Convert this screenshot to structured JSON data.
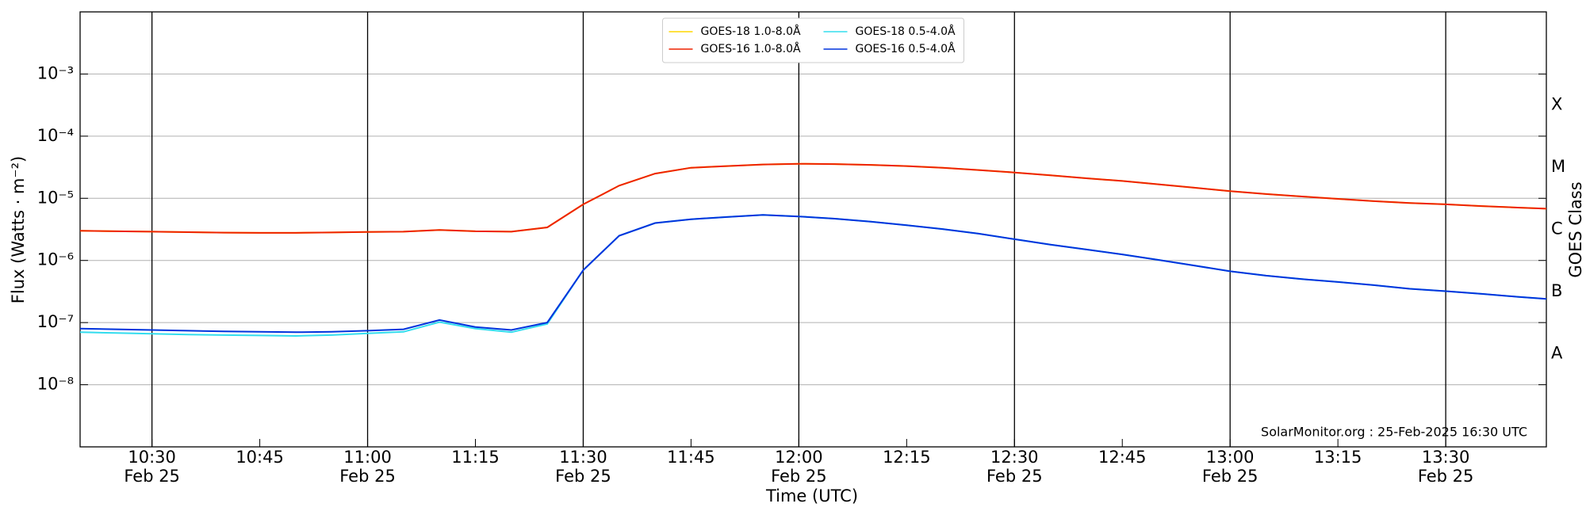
{
  "chart_data": {
    "type": "line",
    "xlabel": "Time (UTC)",
    "ylabel": "Flux (Watts · m⁻²)",
    "y2label": "GOES Class",
    "annotation": "SolarMonitor.org : 25-Feb-2025 16:30 UTC",
    "log_y": true,
    "grid": true,
    "legend": "upper center",
    "xlim": [
      "10:20",
      "13:44"
    ],
    "xticks": [
      "10:30",
      "10:45",
      "11:00",
      "11:15",
      "11:30",
      "11:45",
      "12:00",
      "12:15",
      "12:30",
      "12:45",
      "13:00",
      "13:15",
      "13:30"
    ],
    "xtick_dates": [
      "Feb 25",
      null,
      "Feb 25",
      null,
      "Feb 25",
      null,
      "Feb 25",
      null,
      "Feb 25",
      null,
      "Feb 25",
      null,
      "Feb 25"
    ],
    "ylim": [
      1e-09,
      0.01
    ],
    "yticks": [
      {
        "value": 1e-08,
        "label": "10⁻⁸"
      },
      {
        "value": 1e-07,
        "label": "10⁻⁷"
      },
      {
        "value": 1e-06,
        "label": "10⁻⁶"
      },
      {
        "value": 1e-05,
        "label": "10⁻⁵"
      },
      {
        "value": 0.0001,
        "label": "10⁻⁴"
      },
      {
        "value": 0.001,
        "label": "10⁻³"
      }
    ],
    "classes": [
      {
        "label": "A",
        "min": 1e-08,
        "max": 1e-07
      },
      {
        "label": "B",
        "min": 1e-07,
        "max": 1e-06
      },
      {
        "label": "C",
        "min": 1e-06,
        "max": 1e-05
      },
      {
        "label": "M",
        "min": 1e-05,
        "max": 0.0001
      },
      {
        "label": "X",
        "min": 0.0001,
        "max": 0.001
      }
    ],
    "x": [
      "10:20",
      "10:25",
      "10:30",
      "10:35",
      "10:40",
      "10:45",
      "10:50",
      "10:55",
      "11:00",
      "11:05",
      "11:10",
      "11:15",
      "11:20",
      "11:25",
      "11:30",
      "11:35",
      "11:40",
      "11:45",
      "11:50",
      "11:55",
      "12:00",
      "12:05",
      "12:10",
      "12:15",
      "12:20",
      "12:25",
      "12:30",
      "12:35",
      "12:40",
      "12:45",
      "12:50",
      "12:55",
      "13:00",
      "13:05",
      "13:10",
      "13:15",
      "13:20",
      "13:25",
      "13:30",
      "13:35",
      "13:40",
      "13:44"
    ],
    "series": [
      {
        "name": "GOES-18 1.0-8.0Å",
        "color": "#ffd700",
        "values": [
          3e-06,
          2.95e-06,
          2.9e-06,
          2.85e-06,
          2.8e-06,
          2.78e-06,
          2.78e-06,
          2.82e-06,
          2.88e-06,
          2.9e-06,
          3.1e-06,
          2.95e-06,
          2.9e-06,
          3.4e-06,
          8e-06,
          1.6e-05,
          2.5e-05,
          3.1e-05,
          3.3e-05,
          3.5e-05,
          3.6e-05,
          3.55e-05,
          3.45e-05,
          3.3e-05,
          3.1e-05,
          2.85e-05,
          2.6e-05,
          2.35e-05,
          2.1e-05,
          1.9e-05,
          1.68e-05,
          1.48e-05,
          1.3e-05,
          1.17e-05,
          1.07e-05,
          9.8e-06,
          9e-06,
          8.4e-06,
          8e-06,
          7.5e-06,
          7.1e-06,
          6.8e-06
        ]
      },
      {
        "name": "GOES-16 1.0-8.0Å",
        "color": "#ee2200",
        "values": [
          3e-06,
          2.95e-06,
          2.9e-06,
          2.85e-06,
          2.8e-06,
          2.78e-06,
          2.78e-06,
          2.82e-06,
          2.88e-06,
          2.9e-06,
          3.1e-06,
          2.95e-06,
          2.9e-06,
          3.4e-06,
          8e-06,
          1.6e-05,
          2.5e-05,
          3.1e-05,
          3.3e-05,
          3.5e-05,
          3.6e-05,
          3.55e-05,
          3.45e-05,
          3.3e-05,
          3.1e-05,
          2.85e-05,
          2.6e-05,
          2.35e-05,
          2.1e-05,
          1.9e-05,
          1.68e-05,
          1.48e-05,
          1.3e-05,
          1.17e-05,
          1.07e-05,
          9.8e-06,
          9e-06,
          8.4e-06,
          8e-06,
          7.5e-06,
          7.1e-06,
          6.8e-06
        ]
      },
      {
        "name": "GOES-18 0.5-4.0Å",
        "color": "#33ddee",
        "values": [
          7e-08,
          6.8e-08,
          6.6e-08,
          6.4e-08,
          6.3e-08,
          6.2e-08,
          6.1e-08,
          6.3e-08,
          6.7e-08,
          7.1e-08,
          1.02e-07,
          8e-08,
          7e-08,
          9.5e-08,
          7e-07,
          2.5e-06,
          4e-06,
          4.6e-06,
          5e-06,
          5.4e-06,
          5.1e-06,
          4.7e-06,
          4.2e-06,
          3.7e-06,
          3.2e-06,
          2.7e-06,
          2.2e-06,
          1.8e-06,
          1.5e-06,
          1.25e-06,
          1.02e-06,
          8.3e-07,
          6.7e-07,
          5.7e-07,
          5e-07,
          4.5e-07,
          4e-07,
          3.5e-07,
          3.2e-07,
          2.9e-07,
          2.6e-07,
          2.4e-07
        ]
      },
      {
        "name": "GOES-16 0.5-4.0Å",
        "color": "#0033dd",
        "values": [
          8e-08,
          7.8e-08,
          7.6e-08,
          7.4e-08,
          7.2e-08,
          7.1e-08,
          7e-08,
          7.1e-08,
          7.4e-08,
          7.8e-08,
          1.1e-07,
          8.5e-08,
          7.6e-08,
          1e-07,
          7e-07,
          2.5e-06,
          4e-06,
          4.6e-06,
          5e-06,
          5.4e-06,
          5.1e-06,
          4.7e-06,
          4.2e-06,
          3.7e-06,
          3.2e-06,
          2.7e-06,
          2.2e-06,
          1.8e-06,
          1.5e-06,
          1.25e-06,
          1.02e-06,
          8.3e-07,
          6.7e-07,
          5.7e-07,
          5e-07,
          4.5e-07,
          4e-07,
          3.5e-07,
          3.2e-07,
          2.9e-07,
          2.6e-07,
          2.4e-07
        ]
      }
    ]
  }
}
